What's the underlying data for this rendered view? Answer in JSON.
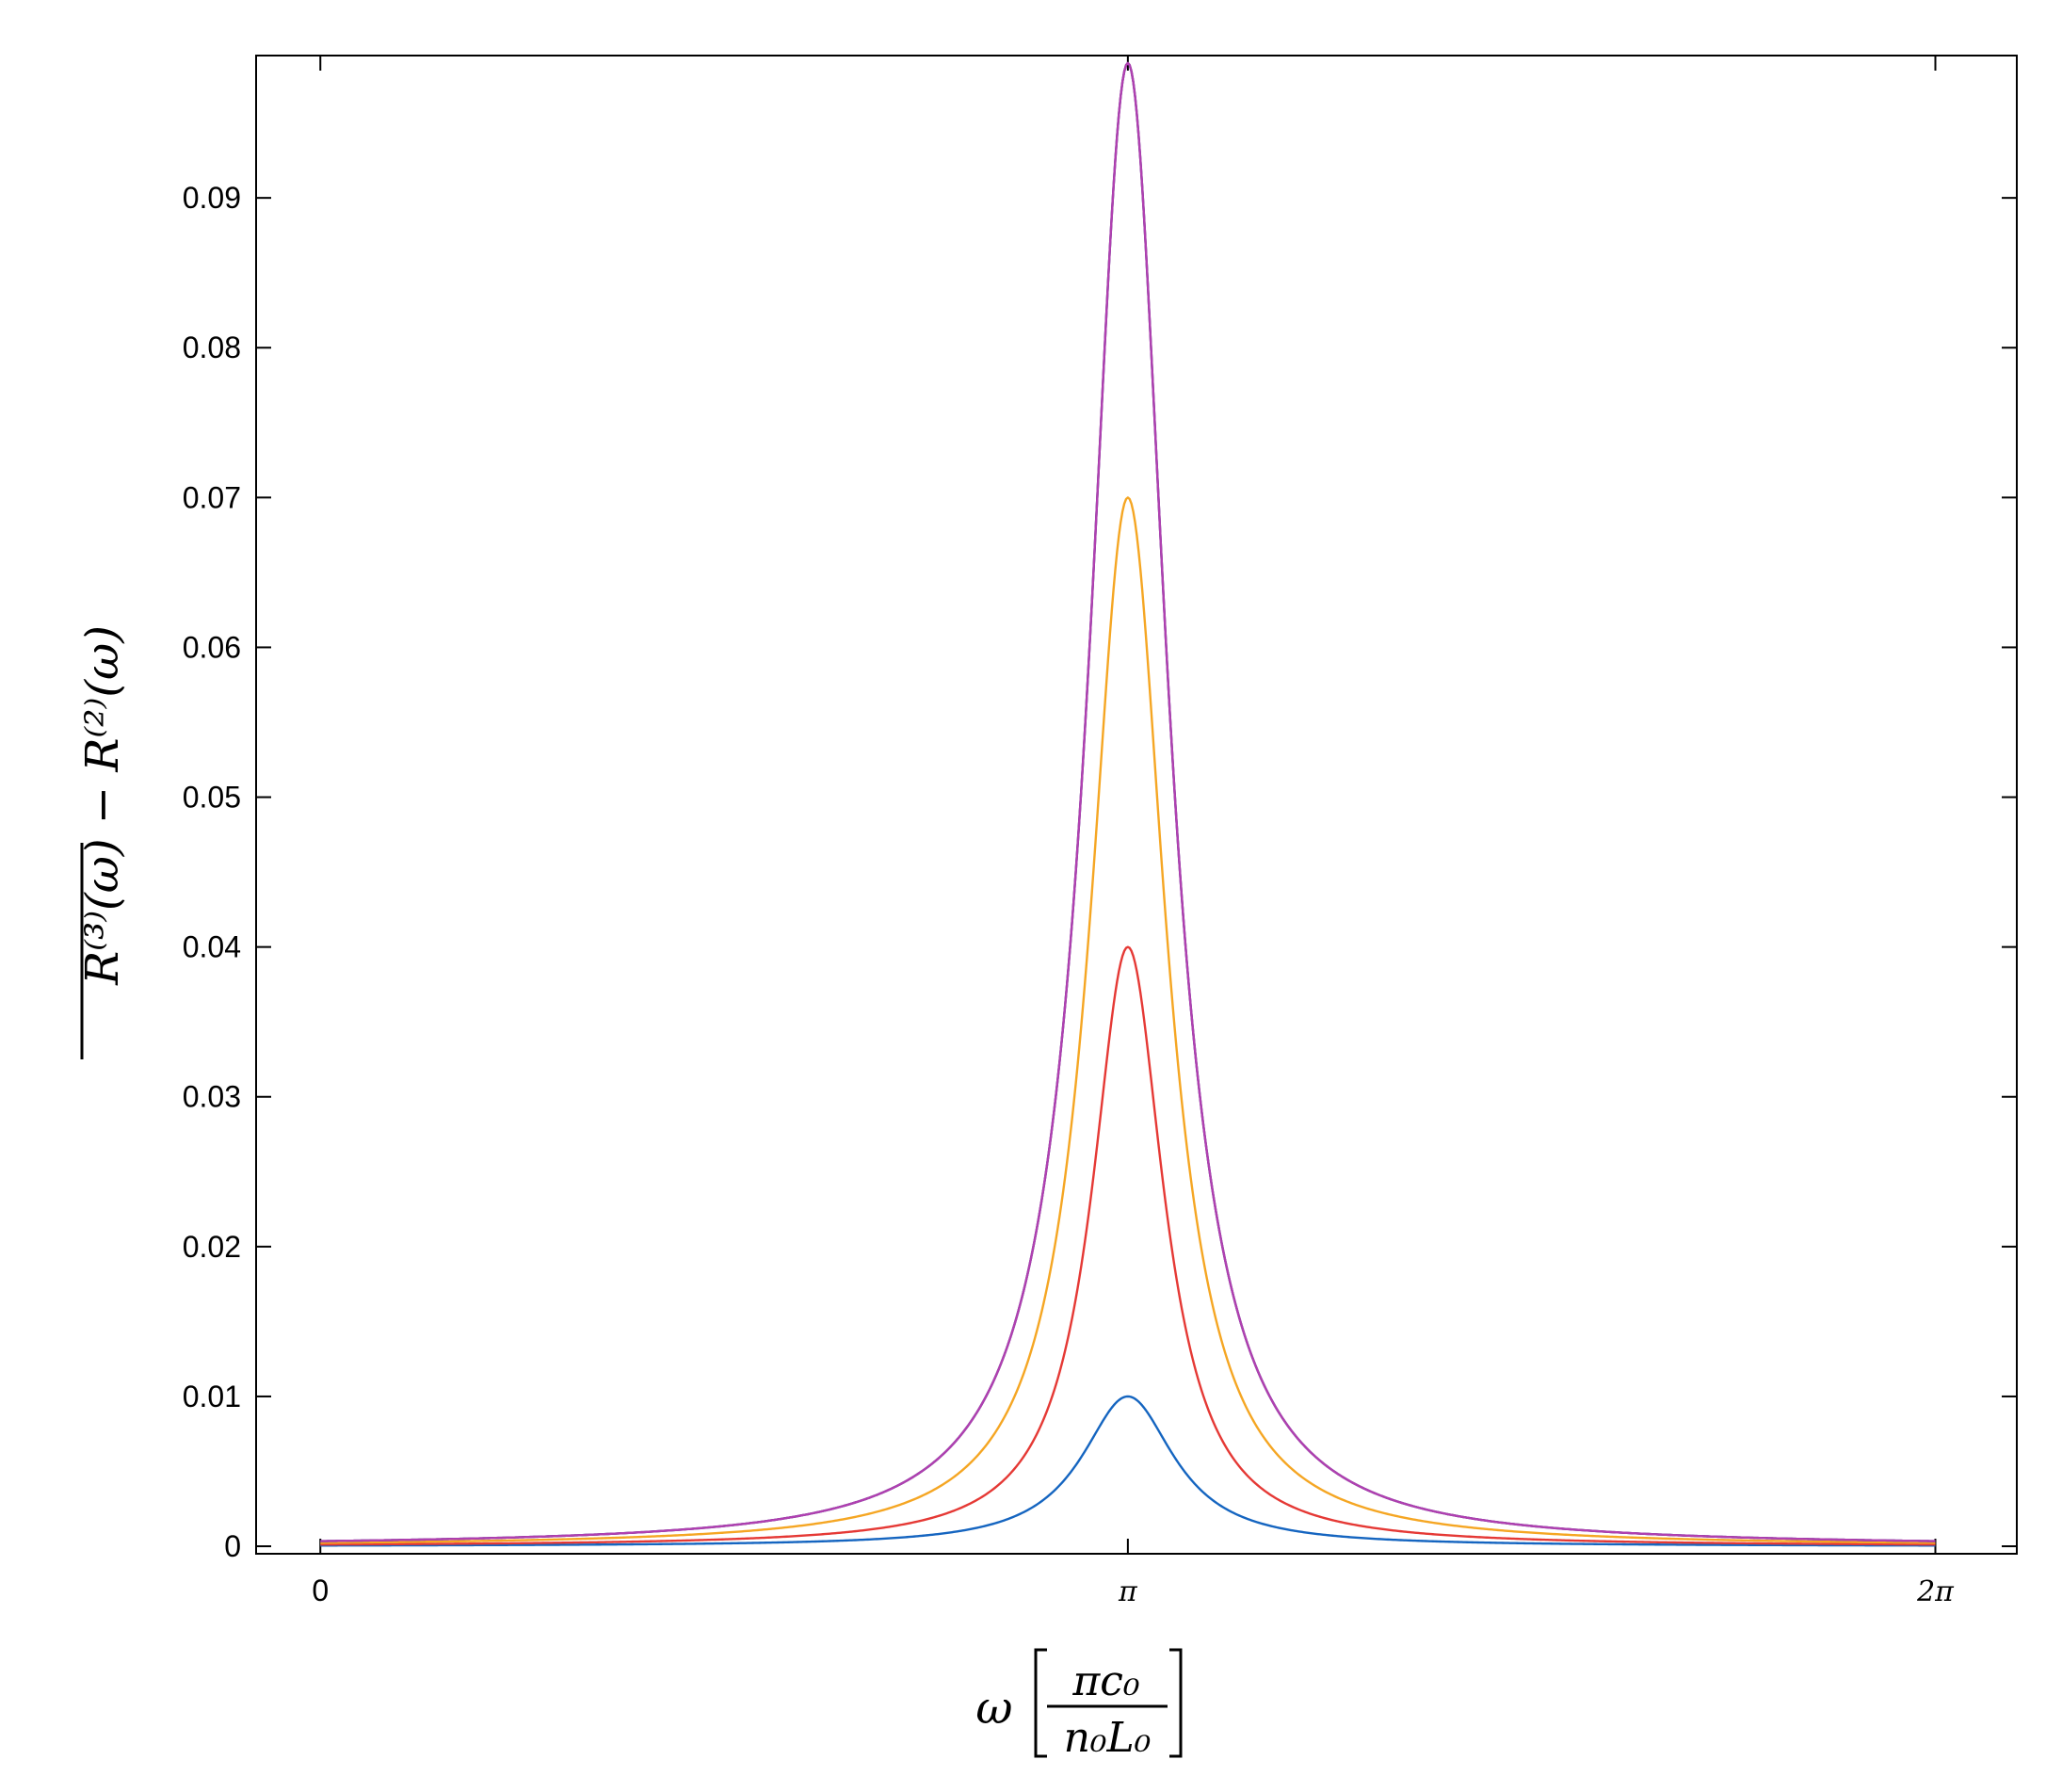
{
  "chart_data": {
    "type": "line",
    "title": "",
    "xlabel": {
      "symbol": "ω",
      "fraction_numerator": "πc₀",
      "fraction_denominator": "n₀L₀"
    },
    "ylabel": "R⁽³⁾(ω) − R⁽²⁾(ω)",
    "xlim": [
      -0.25,
      6.6
    ],
    "ylim": [
      -0.0005,
      0.0995
    ],
    "x_ticks": [
      {
        "value": 0,
        "label": "0"
      },
      {
        "value": 3.14159,
        "label": "π"
      },
      {
        "value": 6.28318,
        "label": "2π"
      }
    ],
    "y_ticks": [
      {
        "value": 0,
        "label": "0"
      },
      {
        "value": 0.01,
        "label": "0.01"
      },
      {
        "value": 0.02,
        "label": "0.02"
      },
      {
        "value": 0.03,
        "label": "0.03"
      },
      {
        "value": 0.04,
        "label": "0.04"
      },
      {
        "value": 0.05,
        "label": "0.05"
      },
      {
        "value": 0.06,
        "label": "0.06"
      },
      {
        "value": 0.07,
        "label": "0.07"
      },
      {
        "value": 0.08,
        "label": "0.08"
      },
      {
        "value": 0.09,
        "label": "0.09"
      }
    ],
    "grid": false,
    "legend": "none",
    "x_range_plotted": [
      0,
      6.28318
    ],
    "series": [
      {
        "color": "#1565c0",
        "peak_x": 3.14159,
        "peak_y": 0.01,
        "half_width": 0.22
      },
      {
        "color": "#e53935",
        "peak_x": 3.14159,
        "peak_y": 0.04,
        "half_width": 0.17
      },
      {
        "color": "#f5a623",
        "peak_x": 3.14159,
        "peak_y": 0.07,
        "half_width": 0.18
      },
      {
        "color": "#1a1a6e",
        "peak_x": 3.14159,
        "peak_y": 0.099,
        "half_width": 0.185
      },
      {
        "color": "#b040b0",
        "peak_x": 3.14159,
        "peak_y": 0.099,
        "half_width": 0.185
      }
    ]
  }
}
